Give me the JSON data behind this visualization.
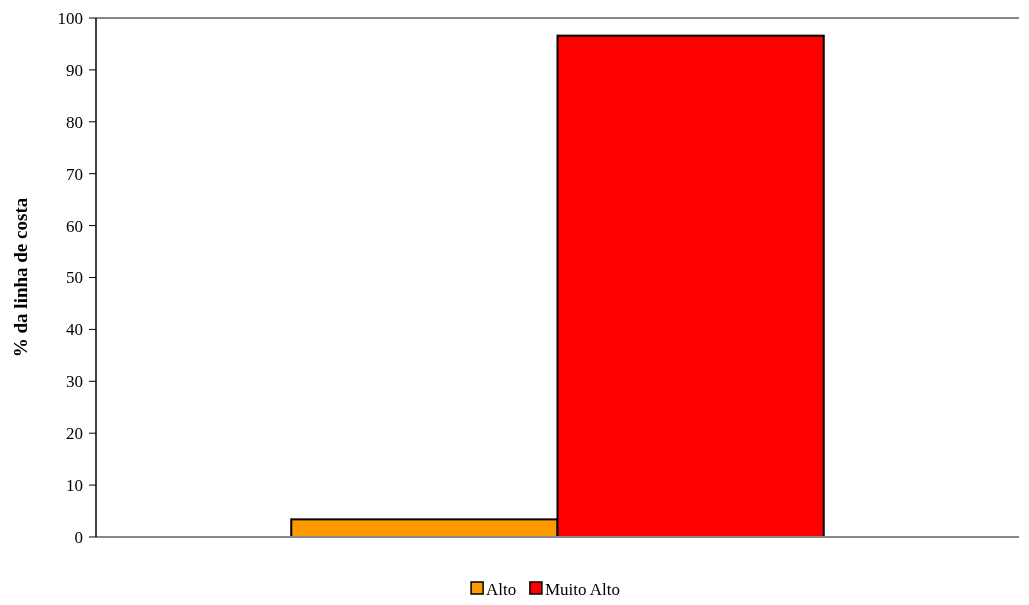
{
  "chart_data": {
    "type": "bar",
    "ylabel": "% da linha de costa",
    "categories": [
      null
    ],
    "series": [
      {
        "name": "Alto",
        "color": "#ff9900",
        "values": [
          3.4
        ]
      },
      {
        "name": "Muito Alto",
        "color": "#ff0000",
        "values": [
          96.6
        ]
      }
    ],
    "ylim": [
      0,
      100
    ],
    "yticks": [
      0,
      10,
      20,
      30,
      40,
      50,
      60,
      70,
      80,
      90,
      100
    ],
    "grid": false,
    "legend": "bottom"
  }
}
